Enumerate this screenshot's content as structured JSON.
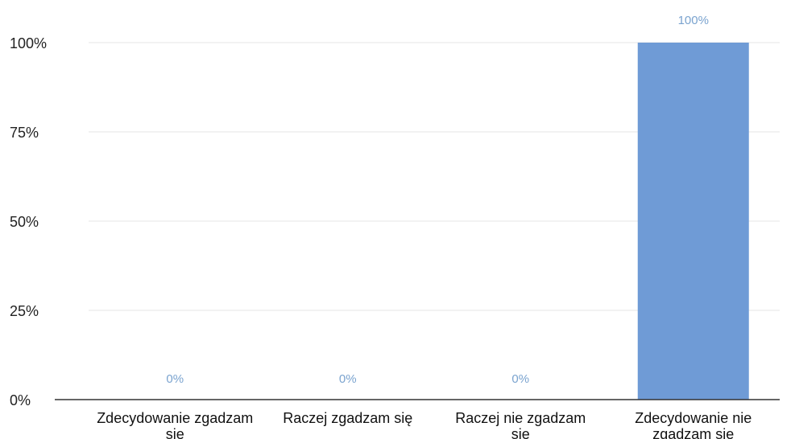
{
  "chart_data": {
    "type": "bar",
    "categories": [
      "Zdecydowanie zgadzam się",
      "Raczej zgadzam się",
      "Raczej nie zgadzam się",
      "Zdecydowanie nie zgadzam się"
    ],
    "values": [
      0,
      0,
      0,
      100
    ],
    "value_labels": [
      "0%",
      "0%",
      "0%",
      "100%"
    ],
    "ylim": [
      0,
      100
    ],
    "yticks": [
      0,
      25,
      50,
      75,
      100
    ],
    "ytick_labels": [
      "0%",
      "25%",
      "50%",
      "75%",
      "100%"
    ],
    "grid": true,
    "bar_color": "#6f9bd6",
    "label_color": "#7aa3cf",
    "axis_color": "#333333",
    "grid_color": "#e6e6e6"
  }
}
